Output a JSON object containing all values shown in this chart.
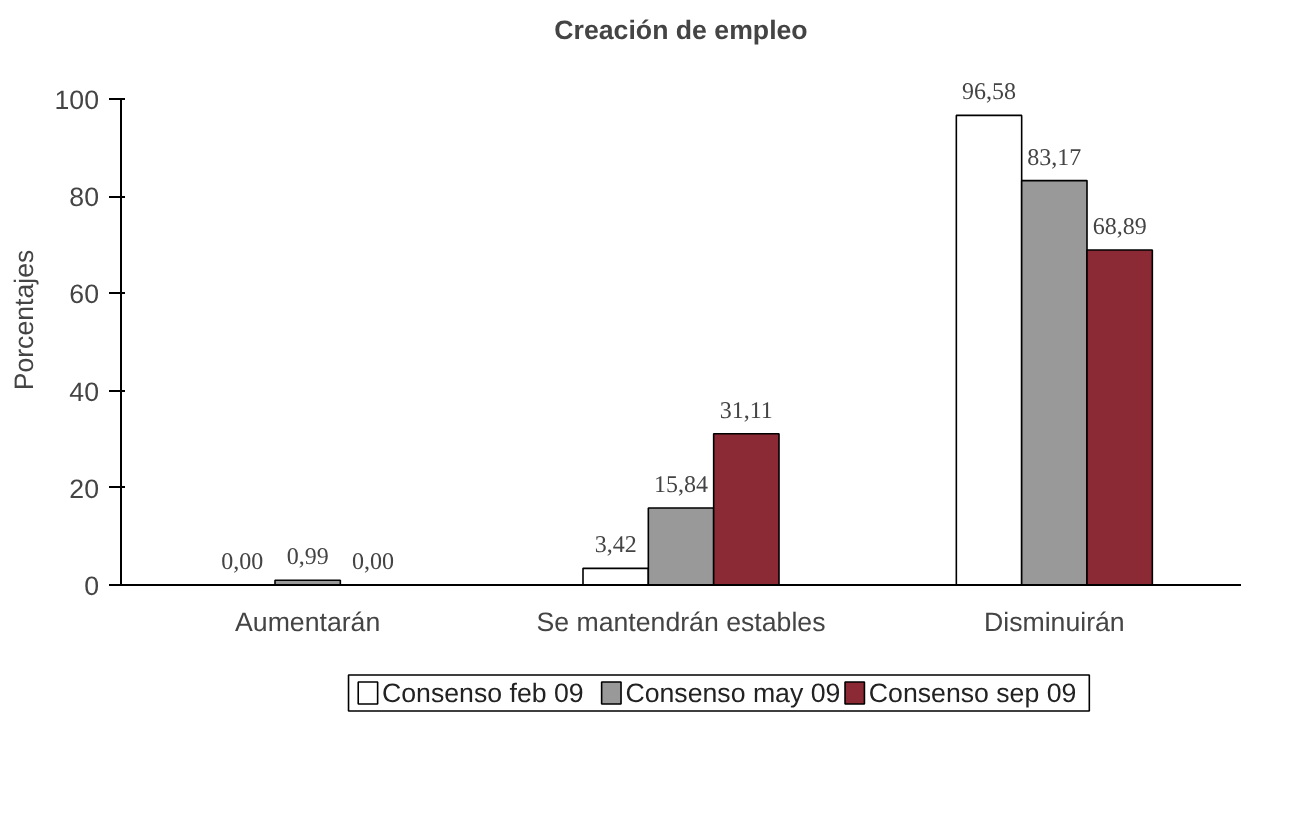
{
  "chart_data": {
    "type": "bar",
    "title": "Creación de empleo",
    "ylabel": "Porcentajes",
    "categories": [
      "Aumentarán",
      "Se mantendrán estables",
      "Disminuirán"
    ],
    "series": [
      {
        "name": "Consenso feb 09",
        "color": "#ffffff",
        "values": [
          0.0,
          3.42,
          96.58
        ],
        "value_labels": [
          "0,00",
          "3,42",
          "96,58"
        ]
      },
      {
        "name": "Consenso may 09",
        "color": "#999999",
        "values": [
          0.99,
          15.84,
          83.17
        ],
        "value_labels": [
          "0,99",
          "15,84",
          "83,17"
        ]
      },
      {
        "name": "Consenso sep 09",
        "color": "#8b2a35",
        "values": [
          0.0,
          31.11,
          68.89
        ],
        "value_labels": [
          "0,00",
          "31,11",
          "68,89"
        ]
      }
    ],
    "ylim": [
      0,
      100
    ],
    "yticks": [
      0,
      20,
      40,
      60,
      80,
      100
    ],
    "grid": false,
    "legend": "bottom"
  }
}
